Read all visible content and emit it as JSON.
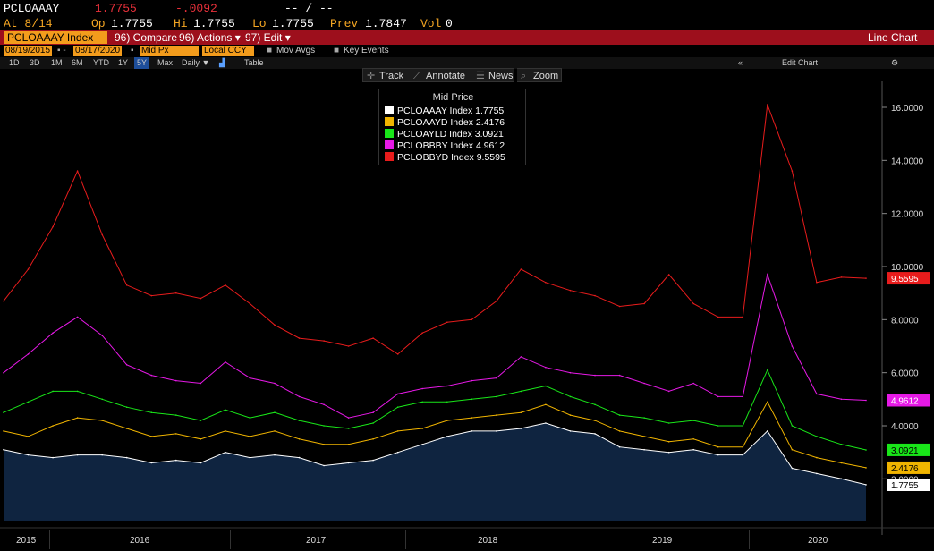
{
  "header": {
    "ticker": "PCLOAAAY",
    "last": "1.7755",
    "change": "-.0092",
    "dashes": "-- / --",
    "at": "At 8/14",
    "op_label": "Op",
    "op": "1.7755",
    "hi_label": "Hi",
    "hi": "1.7755",
    "lo_label": "Lo",
    "lo": "1.7755",
    "prev_label": "Prev",
    "prev": "1.7847",
    "vol_label": "Vol",
    "vol": "0"
  },
  "toolbar_main": {
    "security": "PCLOAAAY Index",
    "compare": "96) Compare",
    "actions": "96) Actions ▾",
    "edit": "97) Edit ▾",
    "view": "Line Chart"
  },
  "settings": {
    "start_date": "08/19/2015",
    "end_date": "08/17/2020",
    "field": "Mid Px",
    "currency": "Local CCY",
    "mov_avgs": "Mov Avgs",
    "key_events": "Key Events"
  },
  "periods": {
    "items": [
      "1D",
      "3D",
      "1M",
      "6M",
      "YTD",
      "1Y",
      "5Y",
      "Max"
    ],
    "selected": "5Y",
    "frequency": "Daily ▼",
    "table": "Table",
    "edit_chart": "Edit Chart"
  },
  "chart_tools": {
    "track": "Track",
    "annotate": "Annotate",
    "news": "News",
    "zoom": "Zoom"
  },
  "legend": {
    "title": "Mid Price"
  },
  "chart_data": {
    "type": "line",
    "x_label_ticks": [
      "2015",
      "2016",
      "2017",
      "2018",
      "2019",
      "2020"
    ],
    "y_ticks": [
      "16.0000",
      "14.0000",
      "12.0000",
      "10.0000",
      "8.0000",
      "6.0000",
      "4.0000",
      "2.0000"
    ],
    "ylim": [
      0.5,
      16.6
    ],
    "grid": false,
    "legend_position": "top-center",
    "x": [
      "2015-08",
      "2015-10",
      "2015-12",
      "2016-01",
      "2016-02",
      "2016-03",
      "2016-04",
      "2016-06",
      "2016-08",
      "2016-10",
      "2016-12",
      "2017-02",
      "2017-04",
      "2017-06",
      "2017-08",
      "2017-10",
      "2017-12",
      "2018-02",
      "2018-04",
      "2018-06",
      "2018-08",
      "2018-10",
      "2018-12",
      "2019-02",
      "2019-04",
      "2019-06",
      "2019-08",
      "2019-10",
      "2019-12",
      "2020-02",
      "2020-03",
      "2020-04",
      "2020-05",
      "2020-06",
      "2020-07",
      "2020-08"
    ],
    "series": [
      {
        "name": "PCLOAAAY Index",
        "label": "PCLOAAAY Index  1.7755",
        "last": "1.7755",
        "color": "#ffffff",
        "area": true,
        "values": [
          3.1,
          2.9,
          2.8,
          2.9,
          2.9,
          2.8,
          2.6,
          2.7,
          2.6,
          3.0,
          2.8,
          2.9,
          2.8,
          2.5,
          2.6,
          2.7,
          3.0,
          3.3,
          3.6,
          3.8,
          3.8,
          3.9,
          4.1,
          3.8,
          3.7,
          3.2,
          3.1,
          3.0,
          3.1,
          2.9,
          2.9,
          3.8,
          2.4,
          2.2,
          2.0,
          1.78
        ]
      },
      {
        "name": "PCLOAAYD Index",
        "label": "PCLOAAYD Index  2.4176",
        "last": "2.4176",
        "color": "#f0b400",
        "area": false,
        "values": [
          3.8,
          3.6,
          4.0,
          4.3,
          4.2,
          3.9,
          3.6,
          3.7,
          3.5,
          3.8,
          3.6,
          3.8,
          3.5,
          3.3,
          3.3,
          3.5,
          3.8,
          3.9,
          4.2,
          4.3,
          4.4,
          4.5,
          4.8,
          4.4,
          4.2,
          3.8,
          3.6,
          3.4,
          3.5,
          3.2,
          3.2,
          4.9,
          3.1,
          2.8,
          2.6,
          2.42
        ]
      },
      {
        "name": "PCLOAYLD Index",
        "label": "PCLOAYLD Index  3.0921",
        "last": "3.0921",
        "color": "#19e619",
        "area": false,
        "values": [
          4.5,
          4.9,
          5.3,
          5.3,
          5.0,
          4.7,
          4.5,
          4.4,
          4.2,
          4.6,
          4.3,
          4.5,
          4.2,
          4.0,
          3.9,
          4.1,
          4.7,
          4.9,
          4.9,
          5.0,
          5.1,
          5.3,
          5.5,
          5.1,
          4.8,
          4.4,
          4.3,
          4.1,
          4.2,
          4.0,
          4.0,
          6.1,
          4.0,
          3.6,
          3.3,
          3.09
        ]
      },
      {
        "name": "PCLOBBBY Index",
        "label": "PCLOBBBY Index  4.9612",
        "last": "4.9612",
        "color": "#e619e6",
        "area": false,
        "values": [
          6.0,
          6.7,
          7.5,
          8.1,
          7.4,
          6.3,
          5.9,
          5.7,
          5.6,
          6.4,
          5.8,
          5.6,
          5.1,
          4.8,
          4.3,
          4.5,
          5.2,
          5.4,
          5.5,
          5.7,
          5.8,
          6.6,
          6.2,
          6.0,
          5.9,
          5.9,
          5.6,
          5.3,
          5.6,
          5.1,
          5.1,
          9.7,
          7.0,
          5.2,
          5.0,
          4.96
        ]
      },
      {
        "name": "PCLOBBYD Index",
        "label": "PCLOBBYD Index  9.5595",
        "last": "9.5595",
        "color": "#e81c1c",
        "area": false,
        "values": [
          8.7,
          9.9,
          11.5,
          13.6,
          11.2,
          9.3,
          8.9,
          9.0,
          8.8,
          9.3,
          8.6,
          7.8,
          7.3,
          7.2,
          7.0,
          7.3,
          6.7,
          7.5,
          7.9,
          8.0,
          8.7,
          9.9,
          9.4,
          9.1,
          8.9,
          8.5,
          8.6,
          9.7,
          8.6,
          8.1,
          8.1,
          16.1,
          13.6,
          9.4,
          9.6,
          9.56
        ]
      }
    ]
  }
}
